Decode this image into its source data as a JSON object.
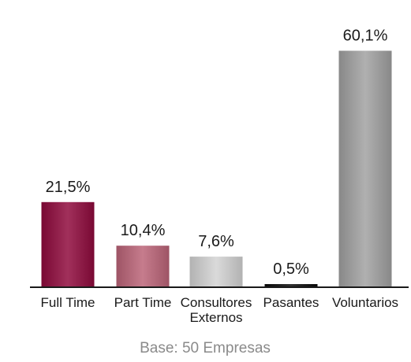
{
  "chart_data": {
    "type": "bar",
    "categories": [
      [
        "Full Time"
      ],
      [
        "Part Time"
      ],
      [
        "Consultores",
        "Externos"
      ],
      [
        "Pasantes"
      ],
      [
        "Voluntarios"
      ]
    ],
    "values": [
      21.5,
      10.4,
      7.6,
      0.5,
      60.1
    ],
    "value_labels": [
      "21,5%",
      "10,4%",
      "7,6%",
      "0,5%",
      "60,1%"
    ],
    "colors": {
      "bars": [
        "#8b1a45",
        "#b06677",
        "#c4c4c4",
        "#1a1a1a",
        "#9a9a9a"
      ],
      "axis": "#1a1a1a"
    },
    "ylim": [
      0,
      62
    ],
    "grid": false,
    "title": "",
    "xlabel": "",
    "ylabel": ""
  },
  "footnote": "Base: 50 Empresas"
}
